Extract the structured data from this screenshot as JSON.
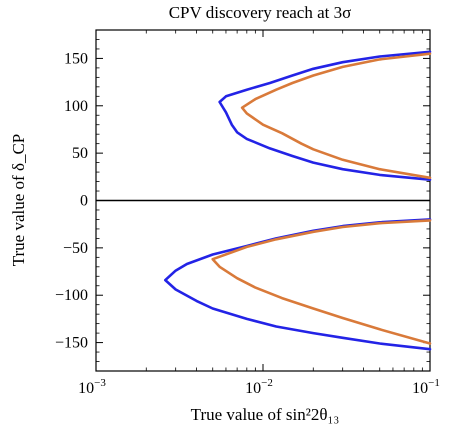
{
  "chart_data": {
    "type": "line",
    "title": "CPV discovery reach at 3σ",
    "xlabel": "True value of sin²2θ₁₃",
    "ylabel": "True value of δ_CP",
    "xscale": "log",
    "xlim": [
      0.001,
      0.1
    ],
    "ylim": [
      -180,
      180
    ],
    "xticks": [
      {
        "value": 0.001,
        "label": "10",
        "exp": "−3"
      },
      {
        "value": 0.01,
        "label": "10",
        "exp": "−2"
      },
      {
        "value": 0.1,
        "label": "10",
        "exp": "−1"
      }
    ],
    "yticks": [
      150,
      100,
      50,
      0,
      -50,
      -100,
      -150
    ],
    "ytick_labels": [
      "150",
      "100",
      "50",
      "0",
      "−50",
      "−100",
      "−150"
    ],
    "zero_line": true,
    "grid": false,
    "series": [
      {
        "color": "#2323e6",
        "points": [
          [
            0.1,
            157
          ],
          [
            0.05,
            152
          ],
          [
            0.03,
            146
          ],
          [
            0.02,
            139
          ],
          [
            0.015,
            132
          ],
          [
            0.011,
            124
          ],
          [
            0.008,
            117
          ],
          [
            0.006,
            110
          ],
          [
            0.0055,
            104
          ],
          [
            0.006,
            93
          ],
          [
            0.0065,
            80
          ],
          [
            0.007,
            72
          ],
          [
            0.008,
            65
          ],
          [
            0.011,
            55
          ],
          [
            0.015,
            47
          ],
          [
            0.02,
            40
          ],
          [
            0.03,
            33
          ],
          [
            0.05,
            27
          ],
          [
            0.1,
            22
          ]
        ]
      },
      {
        "color": "#d97a3a",
        "points": [
          [
            0.1,
            155
          ],
          [
            0.05,
            149
          ],
          [
            0.03,
            141
          ],
          [
            0.02,
            132
          ],
          [
            0.015,
            124
          ],
          [
            0.012,
            117
          ],
          [
            0.009,
            107
          ],
          [
            0.0075,
            98
          ],
          [
            0.008,
            92
          ],
          [
            0.01,
            80
          ],
          [
            0.013,
            71
          ],
          [
            0.017,
            60
          ],
          [
            0.02,
            54
          ],
          [
            0.03,
            43
          ],
          [
            0.05,
            33
          ],
          [
            0.1,
            24
          ]
        ]
      },
      {
        "color": "#2323e6",
        "points": [
          [
            0.1,
            -20
          ],
          [
            0.05,
            -23
          ],
          [
            0.03,
            -27
          ],
          [
            0.02,
            -32
          ],
          [
            0.012,
            -40
          ],
          [
            0.008,
            -48
          ],
          [
            0.005,
            -57
          ],
          [
            0.0035,
            -67
          ],
          [
            0.003,
            -74
          ],
          [
            0.0026,
            -84
          ],
          [
            0.003,
            -94
          ],
          [
            0.004,
            -106
          ],
          [
            0.005,
            -114
          ],
          [
            0.008,
            -125
          ],
          [
            0.012,
            -133
          ],
          [
            0.02,
            -140
          ],
          [
            0.03,
            -145
          ],
          [
            0.05,
            -151
          ],
          [
            0.1,
            -157
          ]
        ]
      },
      {
        "color": "#d97a3a",
        "points": [
          [
            0.1,
            -21
          ],
          [
            0.05,
            -24
          ],
          [
            0.03,
            -28
          ],
          [
            0.02,
            -33
          ],
          [
            0.012,
            -41
          ],
          [
            0.008,
            -49
          ],
          [
            0.005,
            -62
          ],
          [
            0.0055,
            -70
          ],
          [
            0.007,
            -82
          ],
          [
            0.009,
            -92
          ],
          [
            0.013,
            -103
          ],
          [
            0.02,
            -114
          ],
          [
            0.03,
            -124
          ],
          [
            0.05,
            -136
          ],
          [
            0.1,
            -151
          ]
        ]
      }
    ]
  }
}
